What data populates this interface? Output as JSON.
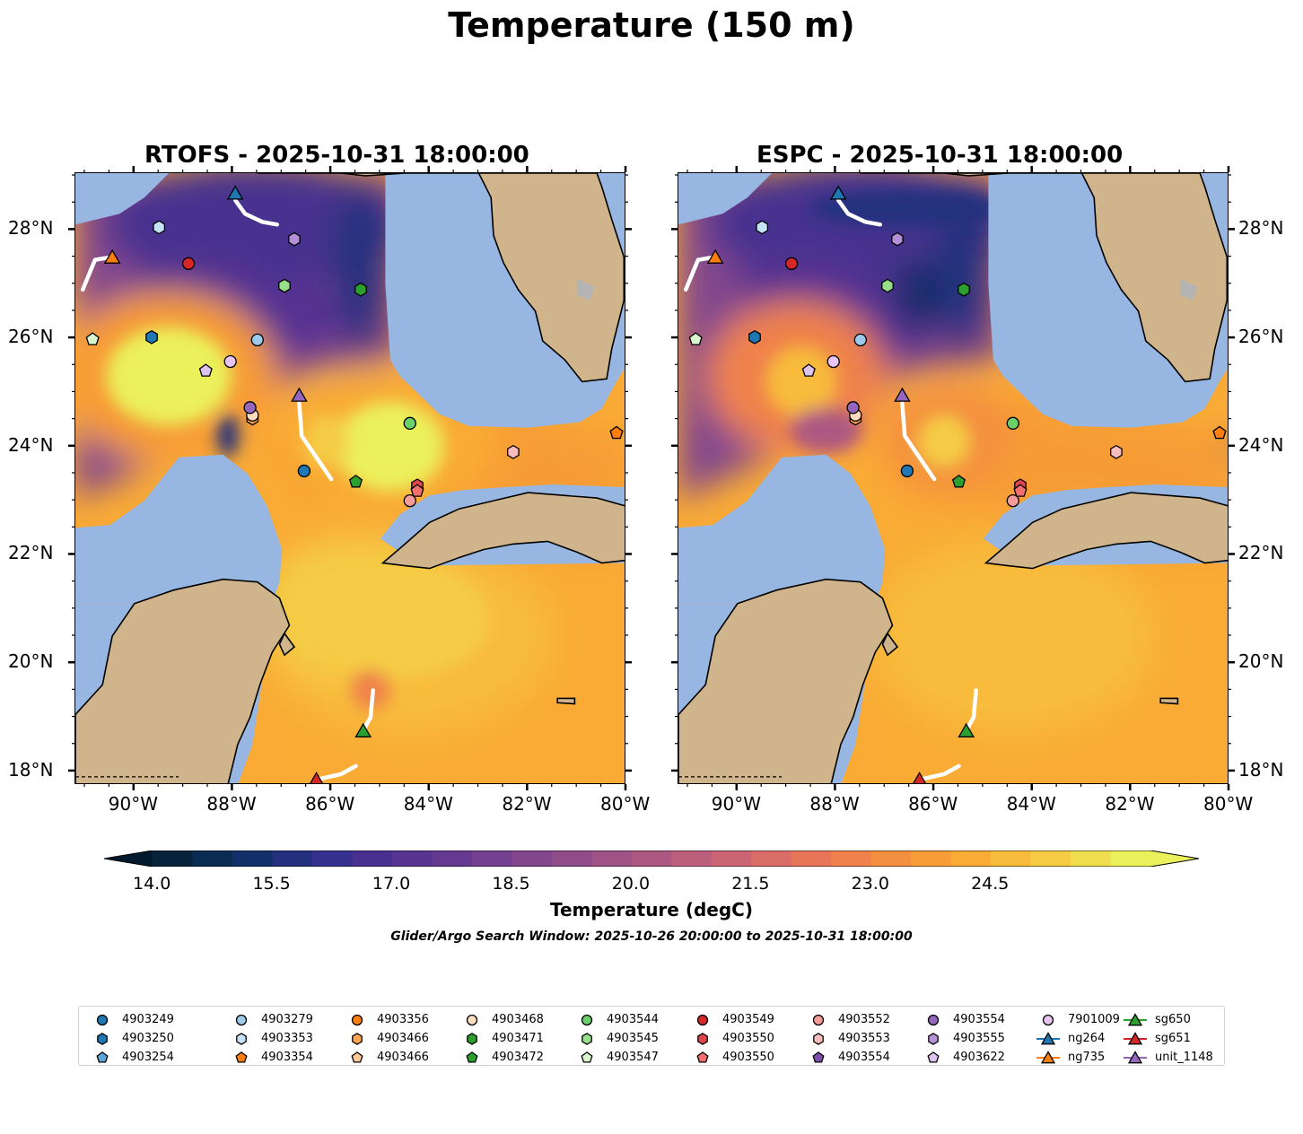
{
  "title": "Temperature (150 m)",
  "panels": [
    {
      "name": "RTOFS",
      "title": "RTOFS - 2025-10-31 18:00:00"
    },
    {
      "name": "ESPC",
      "title": "ESPC - 2025-10-31 18:00:00"
    }
  ],
  "axes": {
    "lon_ticks": [
      "90°W",
      "88°W",
      "86°W",
      "84°W",
      "82°W",
      "80°W"
    ],
    "lat_ticks": [
      "28°N",
      "26°N",
      "24°N",
      "22°N",
      "20°N",
      "18°N"
    ]
  },
  "colorbar": {
    "ticks": [
      "14.0",
      "15.5",
      "17.0",
      "18.5",
      "20.0",
      "21.5",
      "23.0",
      "24.5"
    ],
    "label": "Temperature (degC)",
    "colors": [
      "#07223a",
      "#0b2c52",
      "#122f6a",
      "#24307e",
      "#35308d",
      "#47308f",
      "#573392",
      "#663991",
      "#74408f",
      "#82468d",
      "#904c89",
      "#9e5286",
      "#ad5882",
      "#bc5f7c",
      "#cb6574",
      "#da6d68",
      "#e77659",
      "#ef824c",
      "#f48f3f",
      "#f79c36",
      "#f9ab36",
      "#f8bb3b",
      "#f5cc44",
      "#f1de4e",
      "#ebf15a"
    ],
    "extend_color": "#ebf15a"
  },
  "search_window": "Glider/Argo Search Window: 2025-10-26 20:00:00 to 2025-10-31 18:00:00",
  "colors": {
    "ocean": "#97b6e1",
    "land": "#d0b48c",
    "lake": "#b4b4b4"
  },
  "legend": [
    [
      {
        "label": "4903249",
        "marker": "circle",
        "color": "#1f77b4"
      },
      {
        "label": "4903250",
        "marker": "hexagon",
        "color": "#1f77b4"
      },
      {
        "label": "4903254",
        "marker": "pentagon",
        "color": "#5da5da"
      }
    ],
    [
      {
        "label": "4903279",
        "marker": "circle",
        "color": "#9ecae9"
      },
      {
        "label": "4903353",
        "marker": "hexagon",
        "color": "#c6e2f5"
      },
      {
        "label": "4903354",
        "marker": "pentagon",
        "color": "#ff7f0e"
      }
    ],
    [
      {
        "label": "4903356",
        "marker": "circle",
        "color": "#ff7f0e"
      },
      {
        "label": "4903466",
        "marker": "hexagon",
        "color": "#ffa54f"
      },
      {
        "label": "4903466",
        "marker": "pentagon",
        "color": "#ffc897"
      }
    ],
    [
      {
        "label": "4903468",
        "marker": "circle",
        "color": "#ffdcbf"
      },
      {
        "label": "4903471",
        "marker": "hexagon",
        "color": "#2ca02c"
      },
      {
        "label": "4903472",
        "marker": "pentagon",
        "color": "#2ca02c"
      }
    ],
    [
      {
        "label": "4903544",
        "marker": "circle",
        "color": "#6bcf6b"
      },
      {
        "label": "4903545",
        "marker": "hexagon",
        "color": "#98df8a"
      },
      {
        "label": "4903547",
        "marker": "pentagon",
        "color": "#d8f5d0"
      }
    ],
    [
      {
        "label": "4903549",
        "marker": "circle",
        "color": "#d62728"
      },
      {
        "label": "4903550",
        "marker": "hexagon",
        "color": "#e0474c"
      },
      {
        "label": "4903550",
        "marker": "pentagon",
        "color": "#f07070"
      }
    ],
    [
      {
        "label": "4903552",
        "marker": "circle",
        "color": "#f79a9a"
      },
      {
        "label": "4903553",
        "marker": "hexagon",
        "color": "#f9bdbd"
      },
      {
        "label": "4903554",
        "marker": "pentagon",
        "color": "#7b4fab"
      }
    ],
    [
      {
        "label": "4903554",
        "marker": "circle",
        "color": "#9467bd"
      },
      {
        "label": "4903555",
        "marker": "hexagon",
        "color": "#b491d6"
      },
      {
        "label": "4903622",
        "marker": "pentagon",
        "color": "#dcc4ee"
      }
    ],
    [
      {
        "label": "7901009",
        "marker": "circle",
        "color": "#e8c4f2"
      },
      {
        "label": "ng264",
        "marker": "triangle",
        "color": "#1f77b4"
      },
      {
        "label": "ng735",
        "marker": "triangle",
        "color": "#ff7f0e"
      }
    ],
    [
      {
        "label": "sg650",
        "marker": "triangle",
        "color": "#2ca02c"
      },
      {
        "label": "sg651",
        "marker": "triangle",
        "color": "#d62728"
      },
      {
        "label": "unit_1148",
        "marker": "triangle",
        "color": "#9467bd"
      }
    ]
  ],
  "markers": [
    {
      "label": "4903249",
      "marker": "circle",
      "color": "#1f77b4",
      "lon": -86.55,
      "lat": 23.55
    },
    {
      "label": "4903250",
      "marker": "hexagon",
      "color": "#1f77b4",
      "lon": -89.65,
      "lat": 26.02
    },
    {
      "label": "4903254",
      "marker": "pentagon",
      "color": "#5da5da",
      "lon": -80.2,
      "lat": 24.25
    },
    {
      "label": "4903279",
      "marker": "circle",
      "color": "#9ecae9",
      "lon": -87.5,
      "lat": 25.97
    },
    {
      "label": "4903353",
      "marker": "hexagon",
      "color": "#c6e2f5",
      "lon": -89.5,
      "lat": 28.05
    },
    {
      "label": "4903354",
      "marker": "pentagon",
      "color": "#ff7f0e",
      "lon": -80.2,
      "lat": 24.25
    },
    {
      "label": "4903466",
      "marker": "hexagon",
      "color": "#ffa54f",
      "lon": -87.6,
      "lat": 24.52
    },
    {
      "label": "4903468",
      "marker": "circle",
      "color": "#ffdcbf",
      "lon": -87.6,
      "lat": 24.58
    },
    {
      "label": "4903471",
      "marker": "hexagon",
      "color": "#2ca02c",
      "lon": -85.4,
      "lat": 26.9
    },
    {
      "label": "4903472",
      "marker": "pentagon",
      "color": "#2ca02c",
      "lon": -85.5,
      "lat": 23.35
    },
    {
      "label": "4903544",
      "marker": "circle",
      "color": "#6bcf6b",
      "lon": -84.4,
      "lat": 24.43
    },
    {
      "label": "4903545",
      "marker": "hexagon",
      "color": "#98df8a",
      "lon": -86.95,
      "lat": 26.97
    },
    {
      "label": "4903547",
      "marker": "pentagon",
      "color": "#d8f5d0",
      "lon": -90.85,
      "lat": 25.98
    },
    {
      "label": "4903549",
      "marker": "circle",
      "color": "#d62728",
      "lon": -88.9,
      "lat": 27.38
    },
    {
      "label": "4903550",
      "marker": "hexagon",
      "color": "#e0474c",
      "lon": -84.25,
      "lat": 23.28
    },
    {
      "label": "4903550",
      "marker": "pentagon",
      "color": "#f07070",
      "lon": -84.25,
      "lat": 23.18
    },
    {
      "label": "4903552",
      "marker": "circle",
      "color": "#f79a9a",
      "lon": -84.4,
      "lat": 23.0
    },
    {
      "label": "4903553",
      "marker": "hexagon",
      "color": "#f9bdbd",
      "lon": -82.3,
      "lat": 23.9
    },
    {
      "label": "4903554",
      "marker": "circle",
      "color": "#9467bd",
      "lon": -87.65,
      "lat": 24.72
    },
    {
      "label": "4903555",
      "marker": "hexagon",
      "color": "#b491d6",
      "lon": -86.75,
      "lat": 27.83
    },
    {
      "label": "4903622",
      "marker": "pentagon",
      "color": "#dcc4ee",
      "lon": -88.55,
      "lat": 25.4
    },
    {
      "label": "7901009",
      "marker": "circle",
      "color": "#e8c4f2",
      "lon": -88.05,
      "lat": 25.57
    },
    {
      "label": "ng264",
      "marker": "triangle",
      "color": "#1f77b4",
      "lon": -87.95,
      "lat": 28.68
    },
    {
      "label": "ng735",
      "marker": "triangle",
      "color": "#ff7f0e",
      "lon": -90.45,
      "lat": 27.5
    },
    {
      "label": "sg650",
      "marker": "triangle",
      "color": "#2ca02c",
      "lon": -85.35,
      "lat": 18.75
    },
    {
      "label": "sg651",
      "marker": "triangle",
      "color": "#d62728",
      "lon": -86.3,
      "lat": 17.85
    },
    {
      "label": "unit_1148",
      "marker": "triangle",
      "color": "#9467bd",
      "lon": -86.65,
      "lat": 24.95
    }
  ],
  "tracks": [
    {
      "name": "ng264",
      "points": [
        [
          -87.95,
          28.55
        ],
        [
          -87.75,
          28.3
        ],
        [
          -87.4,
          28.15
        ],
        [
          -87.1,
          28.1
        ]
      ]
    },
    {
      "name": "ng735",
      "points": [
        [
          -90.45,
          27.5
        ],
        [
          -90.8,
          27.45
        ],
        [
          -91.05,
          26.9
        ]
      ]
    },
    {
      "name": "unit_1148",
      "points": [
        [
          -86.65,
          24.8
        ],
        [
          -86.6,
          24.2
        ],
        [
          -86.3,
          23.8
        ],
        [
          -86.0,
          23.4
        ]
      ]
    },
    {
      "name": "sg650",
      "points": [
        [
          -85.35,
          18.75
        ],
        [
          -85.2,
          19.0
        ],
        [
          -85.15,
          19.5
        ]
      ]
    },
    {
      "name": "sg651",
      "points": [
        [
          -86.3,
          17.85
        ],
        [
          -85.8,
          17.95
        ],
        [
          -85.5,
          18.1
        ]
      ]
    }
  ]
}
